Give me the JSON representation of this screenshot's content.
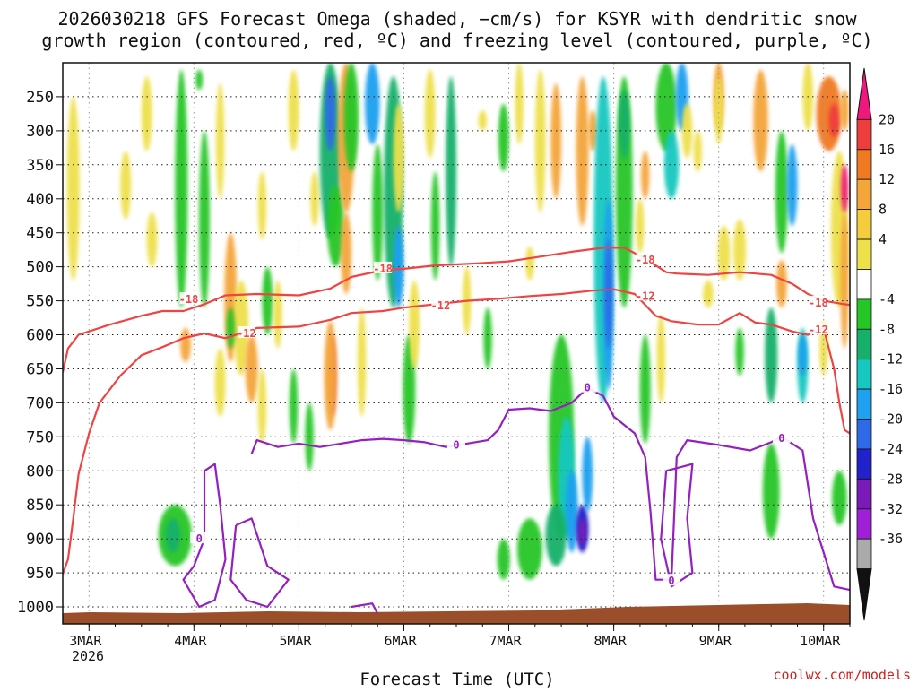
{
  "chart_data": {
    "type": "heatmap",
    "title": [
      "2026030218 GFS Forecast Omega (shaded, −cm/s) for KSYR with dendritic snow",
      "growth region (contoured, red, ºC) and freezing level (contoured, purple, ºC)"
    ],
    "xlabel": "Forecast Time (UTC)",
    "x_ticks": [
      "3MAR",
      "4MAR",
      "5MAR",
      "6MAR",
      "7MAR",
      "8MAR",
      "9MAR",
      "10MAR"
    ],
    "x_year": "2026",
    "x_range_days": [
      2.75,
      10.25
    ],
    "y_ticks": [
      250,
      300,
      350,
      400,
      450,
      500,
      550,
      600,
      650,
      700,
      750,
      800,
      850,
      900,
      950,
      1000
    ],
    "y_range_hpa": [
      200,
      1025
    ],
    "colorbar": {
      "levels": [
        20,
        16,
        12,
        8,
        4,
        -4,
        -8,
        -12,
        -16,
        -20,
        -24,
        -28,
        -32,
        -36
      ],
      "colors": [
        "#f0187c",
        "#ee3d3d",
        "#f07a22",
        "#f4a63a",
        "#f5cc3c",
        "#eee04b",
        "#ffffff",
        "#26c626",
        "#17b06a",
        "#16c8c0",
        "#1fa0f0",
        "#2e6ae8",
        "#2222cc",
        "#7a1ab8",
        "#a020d8",
        "#aaaaaa",
        "#111111"
      ]
    },
    "series": [
      {
        "name": "-18",
        "color": "#ee4444",
        "points": [
          [
            2.75,
            655
          ],
          [
            2.8,
            620
          ],
          [
            2.9,
            600
          ],
          [
            3.2,
            585
          ],
          [
            3.5,
            572
          ],
          [
            3.7,
            565
          ],
          [
            3.9,
            565
          ],
          [
            4.1,
            555
          ],
          [
            4.3,
            542
          ],
          [
            4.6,
            540
          ],
          [
            5.0,
            542
          ],
          [
            5.3,
            532
          ],
          [
            5.5,
            515
          ],
          [
            5.8,
            505
          ],
          [
            6.0,
            503
          ],
          [
            6.3,
            498
          ],
          [
            6.7,
            495
          ],
          [
            7.0,
            492
          ],
          [
            7.3,
            485
          ],
          [
            7.6,
            478
          ],
          [
            7.9,
            472
          ],
          [
            8.1,
            472
          ],
          [
            8.3,
            488
          ],
          [
            8.5,
            508
          ],
          [
            8.6,
            510
          ],
          [
            8.9,
            512
          ],
          [
            9.2,
            508
          ],
          [
            9.5,
            512
          ],
          [
            9.7,
            525
          ],
          [
            9.85,
            540
          ],
          [
            10.0,
            550
          ],
          [
            10.2,
            555
          ],
          [
            10.25,
            556
          ]
        ]
      },
      {
        "name": "-12",
        "color": "#ee4444",
        "points": [
          [
            2.75,
            952
          ],
          [
            2.8,
            930
          ],
          [
            2.85,
            870
          ],
          [
            2.9,
            805
          ],
          [
            3.0,
            745
          ],
          [
            3.1,
            700
          ],
          [
            3.3,
            660
          ],
          [
            3.5,
            630
          ],
          [
            3.7,
            618
          ],
          [
            3.9,
            605
          ],
          [
            4.1,
            598
          ],
          [
            4.3,
            605
          ],
          [
            4.6,
            590
          ],
          [
            5.0,
            588
          ],
          [
            5.3,
            578
          ],
          [
            5.5,
            568
          ],
          [
            5.8,
            565
          ],
          [
            6.0,
            560
          ],
          [
            6.3,
            555
          ],
          [
            6.6,
            550
          ],
          [
            6.9,
            547
          ],
          [
            7.2,
            543
          ],
          [
            7.5,
            540
          ],
          [
            7.8,
            535
          ],
          [
            8.0,
            533
          ],
          [
            8.2,
            540
          ],
          [
            8.4,
            572
          ],
          [
            8.55,
            580
          ],
          [
            8.8,
            585
          ],
          [
            9.0,
            585
          ],
          [
            9.2,
            568
          ],
          [
            9.35,
            582
          ],
          [
            9.5,
            585
          ],
          [
            9.7,
            595
          ],
          [
            9.85,
            600
          ],
          [
            10.0,
            590
          ],
          [
            10.1,
            650
          ],
          [
            10.15,
            700
          ],
          [
            10.2,
            740
          ],
          [
            10.25,
            745
          ]
        ]
      },
      {
        "name": "0",
        "color": "#9520c0",
        "points": [
          [
            4.55,
            775
          ],
          [
            4.6,
            755
          ],
          [
            4.8,
            765
          ],
          [
            5.0,
            760
          ],
          [
            5.2,
            765
          ],
          [
            5.4,
            760
          ],
          [
            5.6,
            755
          ],
          [
            5.8,
            753
          ],
          [
            6.0,
            755
          ],
          [
            6.2,
            758
          ],
          [
            6.4,
            765
          ],
          [
            6.6,
            760
          ],
          [
            6.8,
            755
          ],
          [
            6.9,
            740
          ],
          [
            7.0,
            710
          ],
          [
            7.2,
            708
          ],
          [
            7.4,
            712
          ],
          [
            7.6,
            700
          ],
          [
            7.75,
            678
          ],
          [
            7.9,
            690
          ],
          [
            8.0,
            720
          ],
          [
            8.2,
            745
          ],
          [
            8.3,
            780
          ],
          [
            8.35,
            860
          ],
          [
            8.4,
            960
          ],
          [
            8.55,
            960
          ],
          [
            8.6,
            780
          ],
          [
            8.7,
            755
          ],
          [
            9.0,
            762
          ],
          [
            9.3,
            770
          ],
          [
            9.5,
            758
          ],
          [
            9.6,
            750
          ],
          [
            9.8,
            770
          ],
          [
            9.9,
            870
          ],
          [
            10.0,
            920
          ],
          [
            10.1,
            970
          ],
          [
            10.25,
            975
          ]
        ]
      }
    ],
    "contour_labels": [
      "-18",
      "-18",
      "-12",
      "-12",
      "-18",
      "-12",
      "-18",
      "-12",
      "0",
      "0",
      "0",
      "0",
      "0"
    ],
    "credit": "coolwx.com/models"
  }
}
